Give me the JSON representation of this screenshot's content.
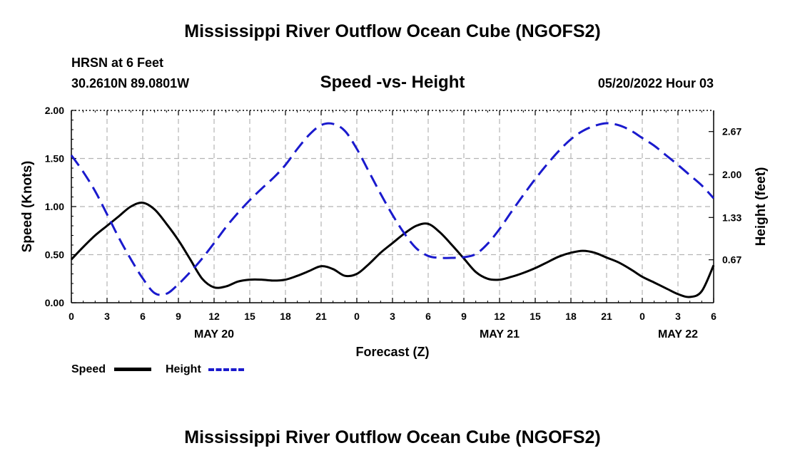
{
  "header": {
    "title": "Mississippi River Outflow Ocean Cube (NGOFS2)",
    "station": "HRSN at 6 Feet",
    "coords": "30.2610N  89.0801W",
    "chart_title": "Speed -vs- Height",
    "date": "05/20/2022 Hour 03"
  },
  "footer": {
    "title": "Mississippi River Outflow Ocean Cube (NGOFS2)"
  },
  "legend": {
    "speed_label": "Speed",
    "height_label": "Height"
  },
  "colors": {
    "speed": "#000000",
    "height": "#1a1acd",
    "grid": "#b4b4b4"
  },
  "chart_data": {
    "type": "line",
    "title": "Speed -vs- Height",
    "xlabel": "Forecast (Z)",
    "ylabel": "Speed (Knots)",
    "y2label": "Height (feet)",
    "xlim": [
      0,
      54
    ],
    "ylim": [
      0,
      2.0
    ],
    "y2lim": [
      0.0,
      3.0
    ],
    "grid": true,
    "x_tick_labels": [
      "0",
      "3",
      "6",
      "9",
      "12",
      "15",
      "18",
      "21",
      "0",
      "3",
      "6",
      "9",
      "12",
      "15",
      "18",
      "21",
      "0",
      "3",
      "6"
    ],
    "y_tick_labels": [
      "0.00",
      "0.50",
      "1.00",
      "1.50",
      "2.00"
    ],
    "y2_ticks": [
      0.67,
      1.33,
      2.0,
      2.67
    ],
    "y2_tick_labels": [
      "0.67",
      "1.33",
      "2.00",
      "2.67"
    ],
    "date_labels": [
      {
        "hour": 12,
        "label": "MAY 20"
      },
      {
        "hour": 36,
        "label": "MAY 21"
      },
      {
        "hour": 51,
        "label": "MAY 22"
      }
    ],
    "series": [
      {
        "name": "Speed",
        "axis": "left",
        "x": [
          0,
          1,
          2,
          3,
          4,
          5,
          6,
          7,
          8,
          9,
          10,
          11,
          12,
          13,
          14,
          15,
          16,
          17,
          18,
          19,
          20,
          21,
          22,
          23,
          24,
          25,
          26,
          27,
          28,
          29,
          30,
          31,
          32,
          33,
          34,
          35,
          36,
          37,
          38,
          39,
          40,
          41,
          42,
          43,
          44,
          45,
          46,
          47,
          48,
          49,
          50,
          51,
          52,
          53,
          54
        ],
        "values": [
          0.45,
          0.58,
          0.7,
          0.8,
          0.9,
          1.0,
          1.04,
          0.97,
          0.82,
          0.65,
          0.45,
          0.25,
          0.16,
          0.17,
          0.22,
          0.24,
          0.24,
          0.23,
          0.24,
          0.28,
          0.33,
          0.38,
          0.35,
          0.28,
          0.3,
          0.4,
          0.52,
          0.62,
          0.72,
          0.8,
          0.82,
          0.73,
          0.6,
          0.46,
          0.32,
          0.25,
          0.24,
          0.27,
          0.31,
          0.36,
          0.42,
          0.48,
          0.52,
          0.54,
          0.52,
          0.47,
          0.42,
          0.35,
          0.27,
          0.21,
          0.15,
          0.09,
          0.06,
          0.12,
          0.39
        ]
      },
      {
        "name": "Height",
        "axis": "right",
        "x": [
          0,
          1,
          2,
          3,
          4,
          5,
          6,
          7,
          8,
          9,
          10,
          11,
          12,
          13,
          14,
          15,
          16,
          17,
          18,
          19,
          20,
          21,
          22,
          23,
          24,
          25,
          26,
          27,
          28,
          29,
          30,
          31,
          32,
          33,
          34,
          35,
          36,
          37,
          38,
          39,
          40,
          41,
          42,
          43,
          44,
          45,
          46,
          47,
          48,
          49,
          50,
          51,
          52,
          53,
          54
        ],
        "values": [
          2.3,
          2.04,
          1.74,
          1.38,
          1.01,
          0.68,
          0.38,
          0.15,
          0.14,
          0.29,
          0.48,
          0.69,
          0.93,
          1.18,
          1.4,
          1.6,
          1.78,
          1.95,
          2.15,
          2.4,
          2.62,
          2.77,
          2.79,
          2.68,
          2.4,
          2.05,
          1.7,
          1.37,
          1.08,
          0.85,
          0.73,
          0.7,
          0.7,
          0.71,
          0.76,
          0.92,
          1.15,
          1.42,
          1.68,
          1.93,
          2.16,
          2.37,
          2.55,
          2.68,
          2.76,
          2.8,
          2.77,
          2.69,
          2.57,
          2.45,
          2.3,
          2.15,
          1.99,
          1.83,
          1.63
        ]
      }
    ]
  }
}
